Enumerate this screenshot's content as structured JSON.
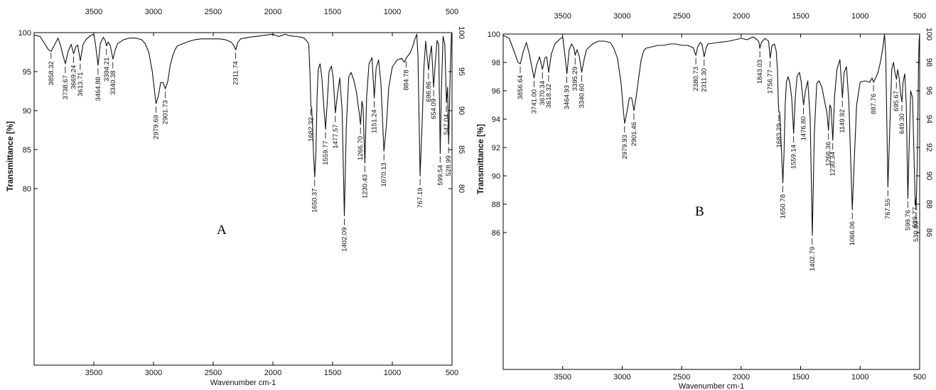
{
  "chart_data": [
    {
      "type": "line",
      "panel_label": "A",
      "xlabel": "Wavenumber cm-1",
      "ylabel": "Transmittance [%]",
      "x_reversed": true,
      "xlim": [
        4000,
        500
      ],
      "ylim": [
        60,
        100
      ],
      "x_ticks": [
        3500,
        3000,
        2500,
        2000,
        1500,
        1000,
        500
      ],
      "y_ticks": [
        100,
        95,
        90,
        85,
        80
      ],
      "peaks": [
        {
          "x": 3858.32,
          "y": 97.8,
          "label": "3858.32"
        },
        {
          "x": 3738.67,
          "y": 96.0,
          "label": "3738.67"
        },
        {
          "x": 3669.24,
          "y": 97.3,
          "label": "3669.24"
        },
        {
          "x": 3613.71,
          "y": 96.4,
          "label": "3613.71"
        },
        {
          "x": 3464.88,
          "y": 95.8,
          "label": "3464.88"
        },
        {
          "x": 3394.21,
          "y": 98.3,
          "label": "3394.21"
        },
        {
          "x": 3340.38,
          "y": 96.6,
          "label": "3340.38"
        },
        {
          "x": 2979.69,
          "y": 90.9,
          "label": "2979.69"
        },
        {
          "x": 2901.73,
          "y": 92.8,
          "label": "2901.73"
        },
        {
          "x": 2311.74,
          "y": 97.8,
          "label": "2311.74"
        },
        {
          "x": 1682.32,
          "y": 90.6,
          "label": "1682.32"
        },
        {
          "x": 1650.37,
          "y": 81.5,
          "label": "1650.37"
        },
        {
          "x": 1559.77,
          "y": 87.6,
          "label": "1559.77"
        },
        {
          "x": 1477.57,
          "y": 89.7,
          "label": "1477.57"
        },
        {
          "x": 1402.09,
          "y": 76.5,
          "label": "1402.09"
        },
        {
          "x": 1266.7,
          "y": 88.2,
          "label": "1266.70"
        },
        {
          "x": 1230.43,
          "y": 83.3,
          "label": "1230.43"
        },
        {
          "x": 1151.24,
          "y": 91.6,
          "label": "1151.24"
        },
        {
          "x": 1070.13,
          "y": 84.8,
          "label": "1070.13"
        },
        {
          "x": 884.78,
          "y": 96.7,
          "label": "884.78"
        },
        {
          "x": 767.19,
          "y": 81.6,
          "label": "767.19"
        },
        {
          "x": 696.86,
          "y": 95.2,
          "label": "696.86"
        },
        {
          "x": 654.09,
          "y": 93.0,
          "label": "654.09"
        },
        {
          "x": 599.54,
          "y": 84.5,
          "label": "599.54"
        },
        {
          "x": 547.04,
          "y": 91.0,
          "label": "547.04"
        },
        {
          "x": 528.99,
          "y": 85.7,
          "label": "528.99"
        }
      ],
      "x": [
        4000,
        3950,
        3900,
        3880,
        3858,
        3830,
        3800,
        3780,
        3760,
        3738,
        3715,
        3690,
        3669,
        3650,
        3635,
        3613,
        3590,
        3560,
        3530,
        3500,
        3485,
        3464,
        3445,
        3420,
        3405,
        3394,
        3380,
        3362,
        3340,
        3320,
        3300,
        3250,
        3200,
        3150,
        3100,
        3070,
        3040,
        3010,
        2990,
        2979,
        2960,
        2940,
        2920,
        2901,
        2880,
        2860,
        2840,
        2820,
        2800,
        2750,
        2700,
        2650,
        2600,
        2550,
        2500,
        2450,
        2400,
        2350,
        2330,
        2311,
        2295,
        2270,
        2200,
        2100,
        2000,
        1950,
        1900,
        1860,
        1800,
        1760,
        1740,
        1720,
        1705,
        1700,
        1690,
        1682,
        1675,
        1668,
        1660,
        1650,
        1640,
        1630,
        1620,
        1605,
        1590,
        1575,
        1559,
        1545,
        1530,
        1510,
        1495,
        1477,
        1460,
        1440,
        1420,
        1402,
        1385,
        1365,
        1345,
        1320,
        1300,
        1280,
        1266,
        1255,
        1245,
        1230,
        1215,
        1195,
        1170,
        1151,
        1135,
        1115,
        1095,
        1070,
        1050,
        1030,
        1000,
        960,
        920,
        900,
        884,
        870,
        850,
        830,
        810,
        795,
        785,
        767,
        750,
        735,
        720,
        708,
        696,
        685,
        672,
        654,
        640,
        625,
        612,
        599,
        590,
        575,
        560,
        547,
        537,
        528,
        515,
        505,
        500
      ],
      "y": [
        99.7,
        99.5,
        98.3,
        97.8,
        97.6,
        98.4,
        99.3,
        98.4,
        97.2,
        96.0,
        97.6,
        98.5,
        97.3,
        98.2,
        98.4,
        96.4,
        98.5,
        99.2,
        99.6,
        99.8,
        98.4,
        95.8,
        98.6,
        99.4,
        99.0,
        98.3,
        98.8,
        98.3,
        96.6,
        97.8,
        98.6,
        99.1,
        99.3,
        99.3,
        99.1,
        98.6,
        97.5,
        95.0,
        92.3,
        90.9,
        91.8,
        93.6,
        93.6,
        92.8,
        93.8,
        95.8,
        97.0,
        97.8,
        98.3,
        98.6,
        98.9,
        99.1,
        99.2,
        99.2,
        99.2,
        99.2,
        99.1,
        98.8,
        98.4,
        97.8,
        98.7,
        99.2,
        99.4,
        99.6,
        99.8,
        99.5,
        99.8,
        99.6,
        99.5,
        99.4,
        99.3,
        99.0,
        98.7,
        98.5,
        95.0,
        90.6,
        90.3,
        88.0,
        84.5,
        81.5,
        84.5,
        92.0,
        95.3,
        96.0,
        94.2,
        90.8,
        87.6,
        91.0,
        95.0,
        95.7,
        94.2,
        89.7,
        92.0,
        94.2,
        90.0,
        76.5,
        88.0,
        94.3,
        94.9,
        93.8,
        92.3,
        90.0,
        88.2,
        91.2,
        90.5,
        83.3,
        91.8,
        96.0,
        96.8,
        91.6,
        95.5,
        96.5,
        93.5,
        84.8,
        88.0,
        93.0,
        95.6,
        96.5,
        96.7,
        96.2,
        96.7,
        97.0,
        97.4,
        98.2,
        99.2,
        99.8,
        97.0,
        81.6,
        88.5,
        95.6,
        98.9,
        96.8,
        95.2,
        97.0,
        98.3,
        93.0,
        96.2,
        99.0,
        98.5,
        84.5,
        92.0,
        99.5,
        98.5,
        91.0,
        93.0,
        85.7,
        95.0,
        99.8,
        100.0
      ]
    },
    {
      "type": "line",
      "panel_label": "B",
      "xlabel": "Wavenumber cm-1",
      "ylabel": "Transmittance [%]",
      "x_reversed": true,
      "xlim": [
        4000,
        500
      ],
      "ylim": [
        80,
        100
      ],
      "x_ticks": [
        3500,
        3000,
        2500,
        2000,
        1500,
        1000,
        500
      ],
      "y_ticks": [
        100,
        98,
        96,
        94,
        92,
        90,
        88,
        86
      ],
      "peaks": [
        {
          "x": 3856.64,
          "y": 97.9,
          "label": "3856.64"
        },
        {
          "x": 3741.0,
          "y": 96.9,
          "label": "3741.00"
        },
        {
          "x": 3670.34,
          "y": 97.5,
          "label": "3670.34"
        },
        {
          "x": 3618.32,
          "y": 97.3,
          "label": "3618.32"
        },
        {
          "x": 3464.93,
          "y": 97.2,
          "label": "3464.93"
        },
        {
          "x": 3395.29,
          "y": 98.5,
          "label": "3395.29"
        },
        {
          "x": 3340.6,
          "y": 97.3,
          "label": "3340.60"
        },
        {
          "x": 2979.93,
          "y": 93.7,
          "label": "2979.93"
        },
        {
          "x": 2901.46,
          "y": 94.6,
          "label": "2901.46"
        },
        {
          "x": 2380.73,
          "y": 98.5,
          "label": "2380.73"
        },
        {
          "x": 2311.3,
          "y": 98.4,
          "label": "2311.30"
        },
        {
          "x": 1843.03,
          "y": 99.0,
          "label": "1843.03"
        },
        {
          "x": 1756.77,
          "y": 98.3,
          "label": "1756.77"
        },
        {
          "x": 1683.29,
          "y": 94.5,
          "label": "1683.29"
        },
        {
          "x": 1650.78,
          "y": 89.5,
          "label": "1650.78"
        },
        {
          "x": 1559.14,
          "y": 93.0,
          "label": "1559.14"
        },
        {
          "x": 1476.8,
          "y": 95.0,
          "label": "1476.80"
        },
        {
          "x": 1402.79,
          "y": 85.8,
          "label": "1402.79"
        },
        {
          "x": 1266.36,
          "y": 93.2,
          "label": "1266.36"
        },
        {
          "x": 1230.34,
          "y": 92.5,
          "label": "1230.34"
        },
        {
          "x": 1149.92,
          "y": 95.5,
          "label": "1149.92"
        },
        {
          "x": 1066.06,
          "y": 87.6,
          "label": "1066.06"
        },
        {
          "x": 887.76,
          "y": 96.6,
          "label": "887.76"
        },
        {
          "x": 767.55,
          "y": 89.2,
          "label": "767.55"
        },
        {
          "x": 695.67,
          "y": 96.8,
          "label": "695.67"
        },
        {
          "x": 649.3,
          "y": 95.2,
          "label": "649.30"
        },
        {
          "x": 599.76,
          "y": 88.4,
          "label": "599.76"
        },
        {
          "x": 539.77,
          "y": 88.6,
          "label": "539.77"
        },
        {
          "x": 530.89,
          "y": 87.6,
          "label": "530.89"
        }
      ],
      "x": [
        4000,
        3950,
        3900,
        3875,
        3856,
        3830,
        3805,
        3780,
        3760,
        3741,
        3720,
        3695,
        3670,
        3650,
        3635,
        3618,
        3595,
        3565,
        3530,
        3500,
        3485,
        3464,
        3445,
        3425,
        3405,
        3395,
        3380,
        3360,
        3340,
        3320,
        3300,
        3250,
        3200,
        3150,
        3100,
        3070,
        3040,
        3010,
        2990,
        2979,
        2960,
        2940,
        2920,
        2901,
        2880,
        2860,
        2840,
        2820,
        2800,
        2750,
        2700,
        2650,
        2600,
        2550,
        2500,
        2450,
        2420,
        2400,
        2390,
        2380,
        2365,
        2345,
        2330,
        2311,
        2295,
        2280,
        2200,
        2100,
        2000,
        1950,
        1900,
        1865,
        1850,
        1843,
        1830,
        1800,
        1770,
        1756,
        1740,
        1720,
        1705,
        1695,
        1688,
        1683,
        1676,
        1668,
        1660,
        1650,
        1640,
        1630,
        1620,
        1605,
        1590,
        1575,
        1559,
        1545,
        1530,
        1510,
        1495,
        1476,
        1460,
        1440,
        1420,
        1402,
        1385,
        1365,
        1345,
        1320,
        1300,
        1280,
        1266,
        1255,
        1245,
        1230,
        1215,
        1195,
        1170,
        1149,
        1135,
        1115,
        1095,
        1066,
        1050,
        1030,
        1000,
        960,
        920,
        900,
        887,
        870,
        850,
        830,
        810,
        795,
        785,
        767,
        750,
        735,
        720,
        708,
        695,
        685,
        672,
        660,
        649,
        640,
        625,
        612,
        599,
        590,
        575,
        560,
        548,
        539,
        530,
        520,
        510,
        505,
        500
      ],
      "y": [
        99.9,
        99.7,
        98.6,
        98.0,
        97.9,
        98.8,
        99.4,
        98.6,
        97.7,
        96.9,
        97.8,
        98.4,
        97.5,
        98.3,
        98.4,
        97.3,
        98.6,
        99.3,
        99.6,
        99.8,
        98.8,
        97.2,
        98.9,
        99.3,
        99.0,
        98.5,
        98.9,
        98.4,
        97.3,
        98.2,
        98.9,
        99.3,
        99.5,
        99.5,
        99.4,
        99.0,
        98.3,
        96.6,
        94.6,
        93.7,
        94.5,
        95.5,
        95.5,
        94.6,
        95.7,
        97.0,
        98.2,
        98.8,
        99.0,
        99.1,
        99.2,
        99.2,
        99.3,
        99.3,
        99.2,
        99.2,
        99.1,
        99.0,
        98.7,
        98.5,
        99.1,
        99.4,
        99.3,
        98.4,
        99.0,
        99.3,
        99.4,
        99.5,
        99.7,
        99.6,
        99.8,
        99.6,
        99.4,
        99.0,
        99.4,
        99.7,
        99.5,
        98.3,
        99.2,
        99.3,
        98.8,
        97.5,
        95.3,
        94.5,
        94.5,
        93.0,
        91.5,
        89.5,
        91.5,
        95.0,
        96.6,
        97.0,
        96.5,
        95.5,
        93.0,
        95.5,
        97.0,
        97.3,
        96.6,
        95.0,
        96.0,
        96.7,
        94.0,
        85.8,
        93.0,
        96.5,
        96.7,
        96.2,
        95.3,
        94.5,
        93.2,
        95.0,
        94.8,
        92.5,
        95.6,
        97.5,
        98.2,
        95.5,
        97.3,
        97.7,
        95.2,
        87.6,
        91.0,
        95.0,
        96.6,
        96.7,
        96.6,
        96.9,
        96.6,
        96.9,
        97.3,
        98.0,
        99.0,
        100.0,
        98.5,
        89.2,
        93.5,
        97.5,
        98.0,
        97.3,
        96.8,
        97.5,
        96.9,
        95.8,
        95.2,
        96.6,
        97.2,
        95.0,
        88.4,
        91.5,
        96.0,
        95.5,
        91.5,
        88.6,
        87.6,
        91.0,
        97.5,
        99.5,
        100.0
      ]
    }
  ]
}
